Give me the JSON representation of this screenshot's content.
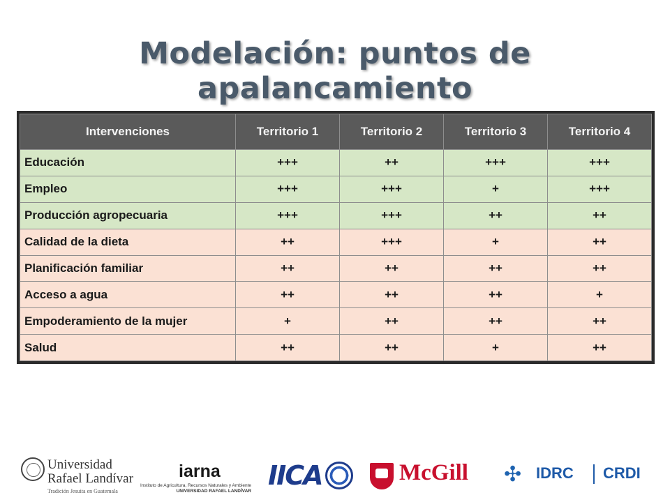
{
  "slide": {
    "title": "Modelación: puntos de apalancamiento"
  },
  "table": {
    "headers": [
      "Intervenciones",
      "Territorio 1",
      "Territorio 2",
      "Territorio 3",
      "Territorio 4"
    ],
    "rows": [
      {
        "label": "Educación",
        "values": [
          "+++",
          "++",
          "+++",
          "+++"
        ],
        "group": "green"
      },
      {
        "label": "Empleo",
        "values": [
          "+++",
          "+++",
          "+",
          "+++"
        ],
        "group": "green"
      },
      {
        "label": "Producción agropecuaria",
        "values": [
          "+++",
          "+++",
          "++",
          "++"
        ],
        "group": "green"
      },
      {
        "label": "Calidad de la dieta",
        "values": [
          "++",
          "+++",
          "+",
          "++"
        ],
        "group": "peach"
      },
      {
        "label": "Planificación familiar",
        "values": [
          "++",
          "++",
          "++",
          "++"
        ],
        "group": "peach"
      },
      {
        "label": "Acceso a agua",
        "values": [
          "++",
          "++",
          "++",
          "+"
        ],
        "group": "peach"
      },
      {
        "label": "Empoderamiento de la mujer",
        "values": [
          "+",
          "++",
          "++",
          "++"
        ],
        "group": "peach"
      },
      {
        "label": "Salud",
        "values": [
          "++",
          "++",
          "+",
          "++"
        ],
        "group": "peach"
      }
    ],
    "colors": {
      "header_bg": "#5a5a5a",
      "group_green": "#d6e7c6",
      "group_peach": "#fbe1d4"
    }
  },
  "logos": {
    "url": {
      "line1": "Universidad",
      "line2": "Rafael Landívar",
      "tagline": "Tradición Jesuita en Guatemala",
      "icon": "university-seal-icon"
    },
    "iarna": {
      "name": "iarna",
      "line1": "Instituto de Agricultura, Recursos Naturales y Ambiente",
      "line2": "UNIVERSIDAD RAFAEL LANDÍVAR"
    },
    "iica": {
      "name": "IICA",
      "icon": "globe-icon"
    },
    "mcgill": {
      "name": "McGill",
      "icon": "mcgill-shield-icon",
      "color": "#c8102e"
    },
    "idrc": {
      "name": "IDRC",
      "name_fr": "CRDI",
      "icon": "idrc-mark-icon",
      "color": "#1e5aa8"
    }
  }
}
